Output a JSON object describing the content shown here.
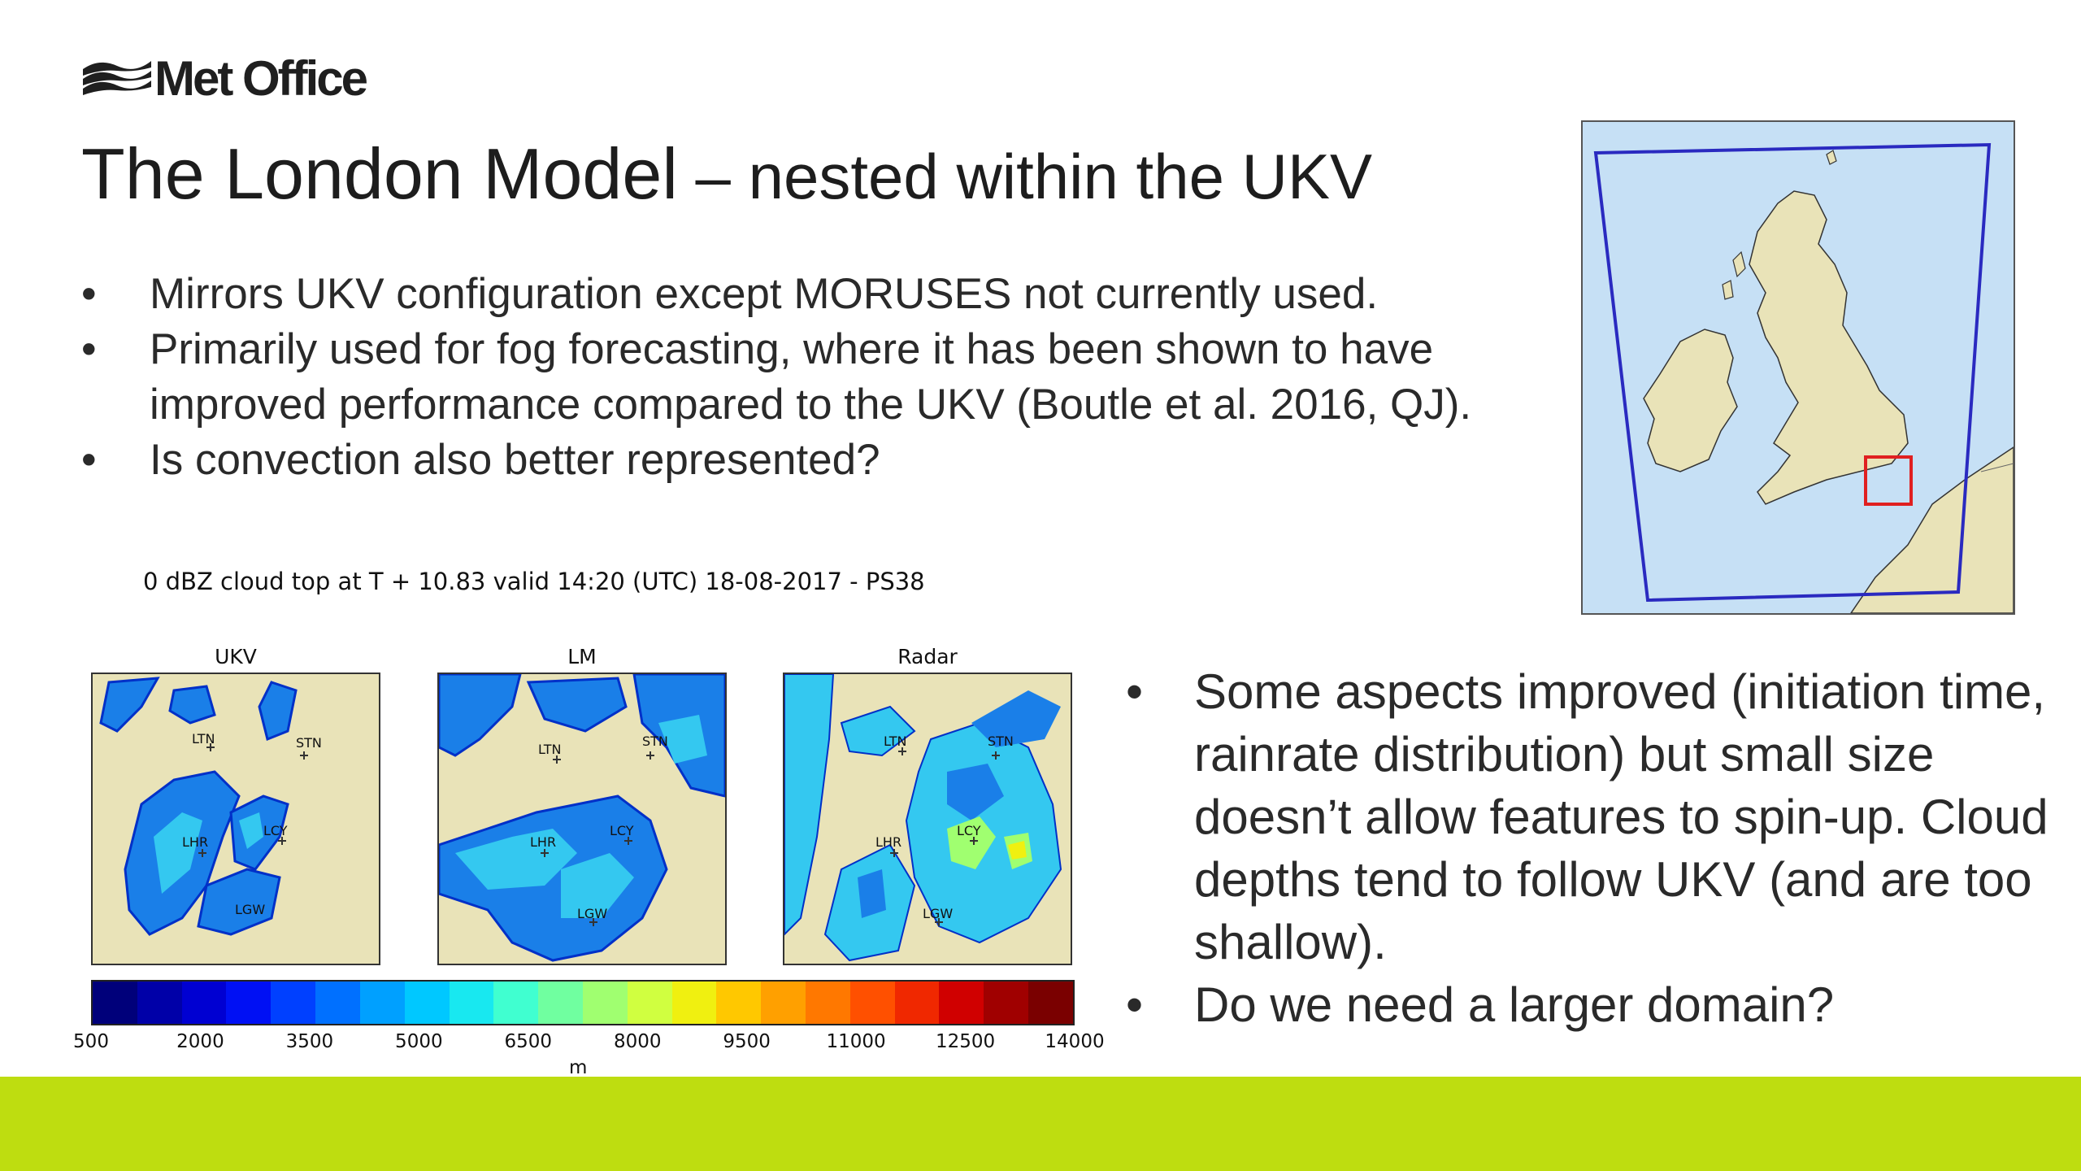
{
  "logo": {
    "text": "Met Office",
    "icon": "met-office-waves-icon"
  },
  "slide": {
    "title_main": "The London Model",
    "title_sub": " – nested within the UKV"
  },
  "bullets_top": [
    "Mirrors UKV configuration except MORUSES not currently used.",
    "Primarily used for fog forecasting, where it has been shown to have improved performance compared to the UKV (Boutle et al. 2016, QJ).",
    "Is convection also better represented?"
  ],
  "bullets_bottom": [
    "Some aspects improved (initiation time, rainrate distribution) but small size doesn’t allow features to spin-up. Cloud depths tend to follow UKV (and are too shallow).",
    "Do we need a larger domain?"
  ],
  "figure": {
    "title": "0 dBZ cloud top at T + 10.83 valid 14:20 (UTC) 18-08-2017 - PS38",
    "panels": [
      {
        "label": "UKV",
        "stations": [
          "LTN",
          "STN",
          "LHR",
          "LCY",
          "LGW"
        ]
      },
      {
        "label": "LM",
        "stations": [
          "LTN",
          "STN",
          "LHR",
          "LCY",
          "LGW"
        ]
      },
      {
        "label": "Radar",
        "stations": [
          "LTN",
          "STN",
          "LHR",
          "LCY",
          "LGW"
        ]
      }
    ],
    "colorbar": {
      "ticks": [
        "500",
        "2000",
        "3500",
        "5000",
        "6500",
        "8000",
        "9500",
        "11000",
        "12500",
        "14000"
      ],
      "unit": "m",
      "colors": [
        "#00007a",
        "#0000a8",
        "#0000d2",
        "#0010f4",
        "#0040ff",
        "#0070ff",
        "#00a0ff",
        "#00c8ff",
        "#18e8f0",
        "#40ffd0",
        "#70ffa0",
        "#a0ff70",
        "#d0ff40",
        "#f0f010",
        "#ffc800",
        "#ffa000",
        "#ff7800",
        "#ff5000",
        "#f02800",
        "#d00000",
        "#a00000",
        "#7a0000"
      ]
    }
  },
  "colors": {
    "accent_bar": "#bedd10",
    "sea": "#c6e0f5",
    "land": "#e9e3b8",
    "domain_box": "#2a2ac0",
    "london_box": "#e02020"
  }
}
